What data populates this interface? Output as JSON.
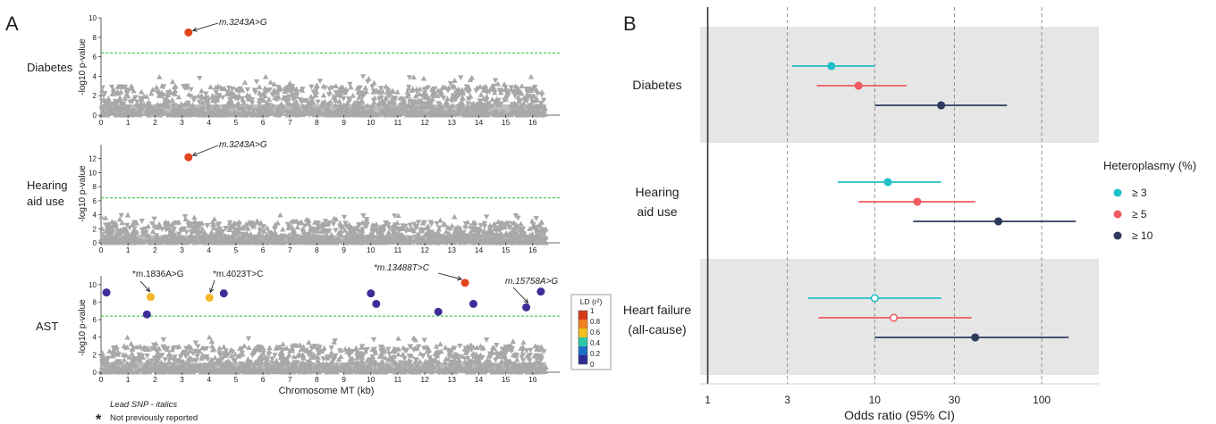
{
  "panel_a": {
    "letter": "A",
    "xlabel": "Chromosome MT (kb)",
    "ylabel": "-log10 p-value",
    "lead_note": "Lead SNP - italics",
    "novel_note": "Not previously reported",
    "novel_marker": "*",
    "legend_title": "LD (r²)",
    "legend_ticks": [
      "1",
      "0.8",
      "0.6",
      "0.4",
      "0.2",
      "0"
    ],
    "legend_colors": [
      "#2e2c94",
      "#1f6fc9",
      "#2cc7a6",
      "#f0c020",
      "#f08020",
      "#d43a1a"
    ],
    "threshold_color": "#2cbb2c",
    "background_color": "#a8a8a8"
  },
  "panel_b": {
    "letter": "B",
    "xlabel": "Odds ratio (95% CI)",
    "legend_title": "Heteroplasmy (%)",
    "legend_items": [
      {
        "label": "≥ 3",
        "color": "#1fbfc8"
      },
      {
        "label": "≥ 5",
        "color": "#f05a62"
      },
      {
        "label": "≥ 10",
        "color": "#2d3a5c"
      }
    ]
  },
  "chart_data": [
    {
      "type": "scatter",
      "title": "Diabetes",
      "xlabel": "Chromosome MT (kb)",
      "ylabel": "-log10 p-value",
      "xlim": [
        0,
        17
      ],
      "ylim": [
        0,
        10
      ],
      "x_ticks": [
        0,
        1,
        2,
        3,
        4,
        5,
        6,
        7,
        8,
        9,
        10,
        11,
        12,
        13,
        14,
        15,
        16
      ],
      "y_ticks": [
        0,
        2,
        4,
        6,
        8,
        10
      ],
      "threshold": 6.4,
      "highlighted": [
        {
          "x": 3.24,
          "y": 8.5,
          "label": "m.3243A>G",
          "r2": 1,
          "color": "#e2441c",
          "lead": true,
          "novel": false
        }
      ]
    },
    {
      "type": "scatter",
      "title": "Hearing aid use",
      "xlabel": "Chromosome MT (kb)",
      "ylabel": "-log10 p-value",
      "xlim": [
        0,
        17
      ],
      "ylim": [
        0,
        14
      ],
      "x_ticks": [
        0,
        1,
        2,
        3,
        4,
        5,
        6,
        7,
        8,
        9,
        10,
        11,
        12,
        13,
        14,
        15,
        16
      ],
      "y_ticks": [
        0,
        2,
        4,
        6,
        8,
        10,
        12
      ],
      "threshold": 6.4,
      "highlighted": [
        {
          "x": 3.24,
          "y": 12.2,
          "label": "m.3243A>G",
          "r2": 1,
          "color": "#e2441c",
          "lead": true,
          "novel": false
        }
      ]
    },
    {
      "type": "scatter",
      "title": "AST",
      "xlabel": "Chromosome MT (kb)",
      "ylabel": "-log10 p-value",
      "xlim": [
        0,
        17
      ],
      "ylim": [
        0,
        11
      ],
      "x_ticks": [
        0,
        1,
        2,
        3,
        4,
        5,
        6,
        7,
        8,
        9,
        10,
        11,
        12,
        13,
        14,
        15,
        16
      ],
      "y_ticks": [
        0,
        2,
        4,
        6,
        8,
        10
      ],
      "threshold": 6.4,
      "highlighted": [
        {
          "x": 0.2,
          "y": 9.1,
          "label": "",
          "color": "#3d2e9a"
        },
        {
          "x": 1.7,
          "y": 6.6,
          "label": "",
          "color": "#3d2e9a"
        },
        {
          "x": 1.84,
          "y": 8.6,
          "label": "m.1836A>G",
          "color": "#f2b828",
          "lead": false,
          "novel": true
        },
        {
          "x": 4.02,
          "y": 8.5,
          "label": "m.4023T>C",
          "color": "#f2b828",
          "lead": false,
          "novel": true
        },
        {
          "x": 4.55,
          "y": 9.0,
          "label": "",
          "color": "#3d2e9a"
        },
        {
          "x": 10.0,
          "y": 9.0,
          "label": "",
          "color": "#3d2e9a"
        },
        {
          "x": 10.2,
          "y": 7.8,
          "label": "",
          "color": "#3d2e9a"
        },
        {
          "x": 12.5,
          "y": 6.9,
          "label": "",
          "color": "#3d2e9a"
        },
        {
          "x": 13.49,
          "y": 10.2,
          "label": "m.13488T>C",
          "color": "#e2441c",
          "lead": true,
          "novel": true
        },
        {
          "x": 13.8,
          "y": 7.8,
          "label": "",
          "color": "#3d2e9a"
        },
        {
          "x": 15.76,
          "y": 7.4,
          "label": "m.15758A>G",
          "color": "#3d2e9a",
          "lead": true,
          "novel": false
        },
        {
          "x": 16.3,
          "y": 9.2,
          "label": "",
          "color": "#3d2e9a"
        }
      ]
    },
    {
      "type": "forest",
      "xlabel": "Odds ratio (95% CI)",
      "x_scale": "log",
      "xlim": [
        0.9,
        220
      ],
      "x_ticks": [
        1,
        3,
        10,
        30,
        100
      ],
      "reference": 1,
      "groups": [
        {
          "name": "Diabetes",
          "shaded": true,
          "rows": [
            {
              "series": "≥ 3",
              "or": 5.5,
              "lo": 3.2,
              "hi": 10,
              "filled": true
            },
            {
              "series": "≥ 5",
              "or": 8,
              "lo": 4.5,
              "hi": 15.5,
              "filled": true
            },
            {
              "series": "≥ 10",
              "or": 25,
              "lo": 10,
              "hi": 62,
              "filled": true
            }
          ]
        },
        {
          "name": "Hearing aid use",
          "shaded": false,
          "rows": [
            {
              "series": "≥ 3",
              "or": 12,
              "lo": 6,
              "hi": 25,
              "filled": true
            },
            {
              "series": "≥ 5",
              "or": 18,
              "lo": 8,
              "hi": 40,
              "filled": true
            },
            {
              "series": "≥ 10",
              "or": 55,
              "lo": 17,
              "hi": 160,
              "filled": true
            }
          ]
        },
        {
          "name": "Heart failure (all-cause)",
          "shaded": true,
          "rows": [
            {
              "series": "≥ 3",
              "or": 10,
              "lo": 4,
              "hi": 25,
              "filled": false
            },
            {
              "series": "≥ 5",
              "or": 13,
              "lo": 4.6,
              "hi": 38,
              "filled": false
            },
            {
              "series": "≥ 10",
              "or": 40,
              "lo": 10,
              "hi": 145,
              "filled": true
            }
          ]
        }
      ]
    }
  ]
}
